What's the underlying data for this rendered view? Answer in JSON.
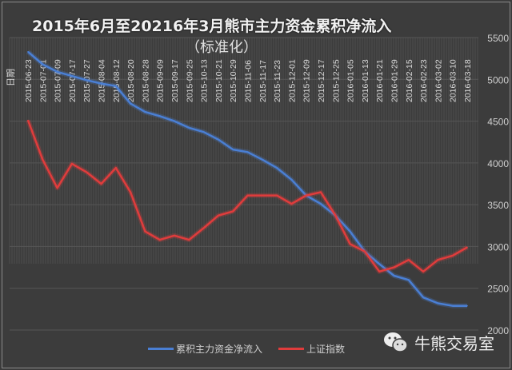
{
  "chart_data": {
    "type": "line",
    "title": "2015年6月至20216年3月熊市主力资金累积净流入",
    "subtitle": "（标准化）",
    "xlabel": "日期",
    "ylabel": "",
    "ylim": [
      2000,
      5500
    ],
    "yticks": [
      2000,
      2500,
      3000,
      3500,
      4000,
      4500,
      5000,
      5500
    ],
    "y_axis_side": "right",
    "grid": "horizontal major gridlines and dense vertical category lines",
    "legend_position": "bottom",
    "x": [
      "2015-06-23",
      "2015-07-01",
      "2015-07-09",
      "2015-07-17",
      "2015-07-27",
      "2015-08-04",
      "2015-08-12",
      "2015-08-20",
      "2015-08-28",
      "2015-09-09",
      "2015-09-17",
      "2015-09-25",
      "2015-10-13",
      "2015-10-21",
      "2015-10-29",
      "2015-11-06",
      "2015-11-17",
      "2015-11-23",
      "2015-12-01",
      "2015-12-09",
      "2015-12-17",
      "2015-12-25",
      "2016-01-05",
      "2016-01-13",
      "2016-01-21",
      "2016-01-29",
      "2016-02-15",
      "2016-02-23",
      "2016-03-02",
      "2016-03-10",
      "2016-03-18"
    ],
    "series": [
      {
        "name": "累积主力资金净流入",
        "color": "#4a7fd4",
        "values": [
          5330,
          5180,
          5090,
          5040,
          4990,
          4950,
          4920,
          4710,
          4610,
          4560,
          4500,
          4420,
          4370,
          4280,
          4160,
          4130,
          4040,
          3940,
          3800,
          3610,
          3510,
          3370,
          3180,
          2940,
          2790,
          2650,
          2600,
          2390,
          2320,
          2290,
          2290
        ]
      },
      {
        "name": "上证指数",
        "color": "#e03c3c",
        "values": [
          4510,
          4040,
          3700,
          3990,
          3890,
          3750,
          3940,
          3650,
          3180,
          3080,
          3130,
          3080,
          3220,
          3370,
          3420,
          3610,
          3610,
          3610,
          3510,
          3610,
          3650,
          3370,
          3030,
          2940,
          2700,
          2750,
          2840,
          2700,
          2840,
          2890,
          2990
        ]
      }
    ]
  },
  "watermark": {
    "icon": "wechat-icon",
    "text": "牛熊交易室"
  }
}
